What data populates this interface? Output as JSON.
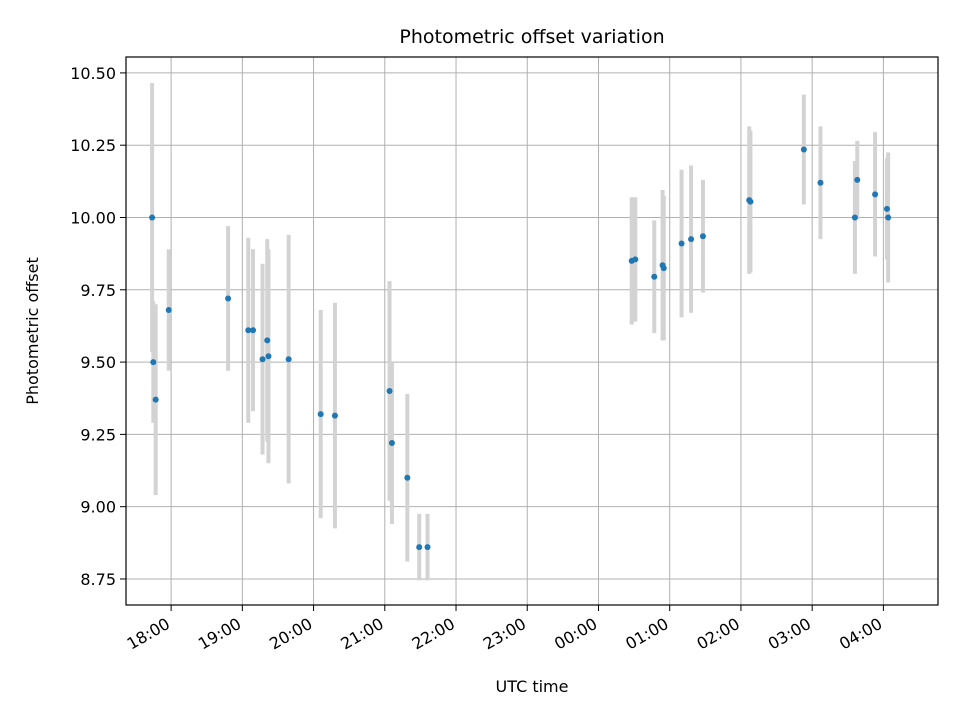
{
  "chart_data": {
    "type": "scatter",
    "title": "Photometric offset variation",
    "xlabel": "UTC time",
    "ylabel": "Photometric offset",
    "x_ticks": [
      "18:00",
      "19:00",
      "20:00",
      "21:00",
      "22:00",
      "23:00",
      "00:00",
      "01:00",
      "02:00",
      "03:00",
      "04:00"
    ],
    "y_ticks": [
      "8.75",
      "9.00",
      "9.25",
      "9.50",
      "9.75",
      "10.00",
      "10.25",
      "10.50"
    ],
    "xlim": [
      "17:22",
      "04:46"
    ],
    "ylim": [
      8.66,
      10.555
    ],
    "grid": true,
    "point_color": "#1f77b4",
    "errorbar_color": "#d3d3d3",
    "series": [
      {
        "points": [
          {
            "x": "17:44",
            "y": 10.0,
            "err": 0.465
          },
          {
            "x": "17:45",
            "y": 9.5,
            "err": 0.21
          },
          {
            "x": "17:47",
            "y": 9.37,
            "err": 0.33
          },
          {
            "x": "17:58",
            "y": 9.68,
            "err": 0.21
          },
          {
            "x": "18:48",
            "y": 9.72,
            "err": 0.25
          },
          {
            "x": "19:05",
            "y": 9.61,
            "err": 0.32
          },
          {
            "x": "19:09",
            "y": 9.61,
            "err": 0.28
          },
          {
            "x": "19:17",
            "y": 9.51,
            "err": 0.33
          },
          {
            "x": "19:21",
            "y": 9.575,
            "err": 0.35
          },
          {
            "x": "19:22",
            "y": 9.52,
            "err": 0.37
          },
          {
            "x": "19:39",
            "y": 9.51,
            "err": 0.43
          },
          {
            "x": "20:06",
            "y": 9.32,
            "err": 0.36
          },
          {
            "x": "20:18",
            "y": 9.315,
            "err": 0.39
          },
          {
            "x": "21:04",
            "y": 9.4,
            "err": 0.38
          },
          {
            "x": "21:06",
            "y": 9.22,
            "err": 0.28
          },
          {
            "x": "21:19",
            "y": 9.1,
            "err": 0.29
          },
          {
            "x": "21:29",
            "y": 8.86,
            "err": 0.115
          },
          {
            "x": "21:36",
            "y": 8.86,
            "err": 0.115
          },
          {
            "x": "00:28",
            "y": 9.85,
            "err": 0.22
          },
          {
            "x": "00:31",
            "y": 9.855,
            "err": 0.215
          },
          {
            "x": "00:47",
            "y": 9.795,
            "err": 0.195
          },
          {
            "x": "00:54",
            "y": 9.835,
            "err": 0.26
          },
          {
            "x": "00:55",
            "y": 9.825,
            "err": 0.25
          },
          {
            "x": "01:10",
            "y": 9.91,
            "err": 0.255
          },
          {
            "x": "01:18",
            "y": 9.925,
            "err": 0.255
          },
          {
            "x": "01:28",
            "y": 9.935,
            "err": 0.195
          },
          {
            "x": "02:07",
            "y": 10.06,
            "err": 0.255
          },
          {
            "x": "02:08",
            "y": 10.055,
            "err": 0.245
          },
          {
            "x": "02:53",
            "y": 10.235,
            "err": 0.19
          },
          {
            "x": "03:07",
            "y": 10.12,
            "err": 0.195
          },
          {
            "x": "03:36",
            "y": 10.0,
            "err": 0.195
          },
          {
            "x": "03:38",
            "y": 10.13,
            "err": 0.135
          },
          {
            "x": "03:53",
            "y": 10.08,
            "err": 0.215
          },
          {
            "x": "04:03",
            "y": 10.03,
            "err": 0.175
          },
          {
            "x": "04:04",
            "y": 10.0,
            "err": 0.225
          }
        ]
      }
    ]
  }
}
